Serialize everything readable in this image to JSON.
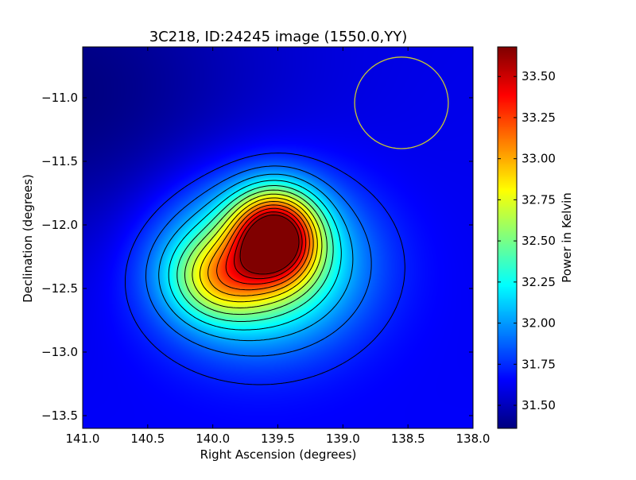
{
  "chart_data": {
    "type": "heatmap",
    "title": "3C218, ID:24245 image (1550.0,YY)",
    "xlabel": "Right Ascension (degrees)",
    "ylabel": "Declination (degrees)",
    "colorbar_label": "Power in Kelvin",
    "colormap": "jet",
    "xlim": [
      141.0,
      138.0
    ],
    "ylim": [
      -13.6,
      -10.6
    ],
    "x_ticks": [
      141.0,
      140.5,
      140.0,
      139.5,
      139.0,
      138.5,
      138.0
    ],
    "x_tick_labels": [
      "141.0",
      "140.5",
      "140.0",
      "139.5",
      "139.0",
      "138.5",
      "138.0"
    ],
    "y_ticks": [
      -11.0,
      -11.5,
      -12.0,
      -12.5,
      -13.0,
      -13.5
    ],
    "y_tick_labels": [
      "−11.0",
      "−11.5",
      "−12.0",
      "−12.5",
      "−13.0",
      "−13.5"
    ],
    "colorbar_range": [
      31.36,
      33.68
    ],
    "colorbar_ticks": [
      31.5,
      31.75,
      32.0,
      32.25,
      32.5,
      32.75,
      33.0,
      33.25,
      33.5
    ],
    "colorbar_tick_labels": [
      "31.50",
      "31.75",
      "32.00",
      "32.25",
      "32.50",
      "32.75",
      "33.00",
      "33.25",
      "33.50"
    ],
    "peak": {
      "ra": 139.52,
      "dec": -12.09,
      "value": 33.68
    },
    "secondary_lobe": {
      "ra": 139.95,
      "dec": -12.42,
      "value": 32.8
    },
    "background_value": 31.62,
    "contour_levels": [
      31.72,
      31.88,
      32.04,
      32.2,
      32.36,
      32.52,
      32.68,
      32.84,
      33.0,
      33.16,
      33.32,
      33.48,
      33.62
    ],
    "circle_marker": {
      "ra": 138.55,
      "dec": -11.04,
      "radius_deg": 0.36,
      "color": "#c8c832"
    },
    "colors": {
      "contour": "#000000",
      "frame": "#000000"
    }
  }
}
